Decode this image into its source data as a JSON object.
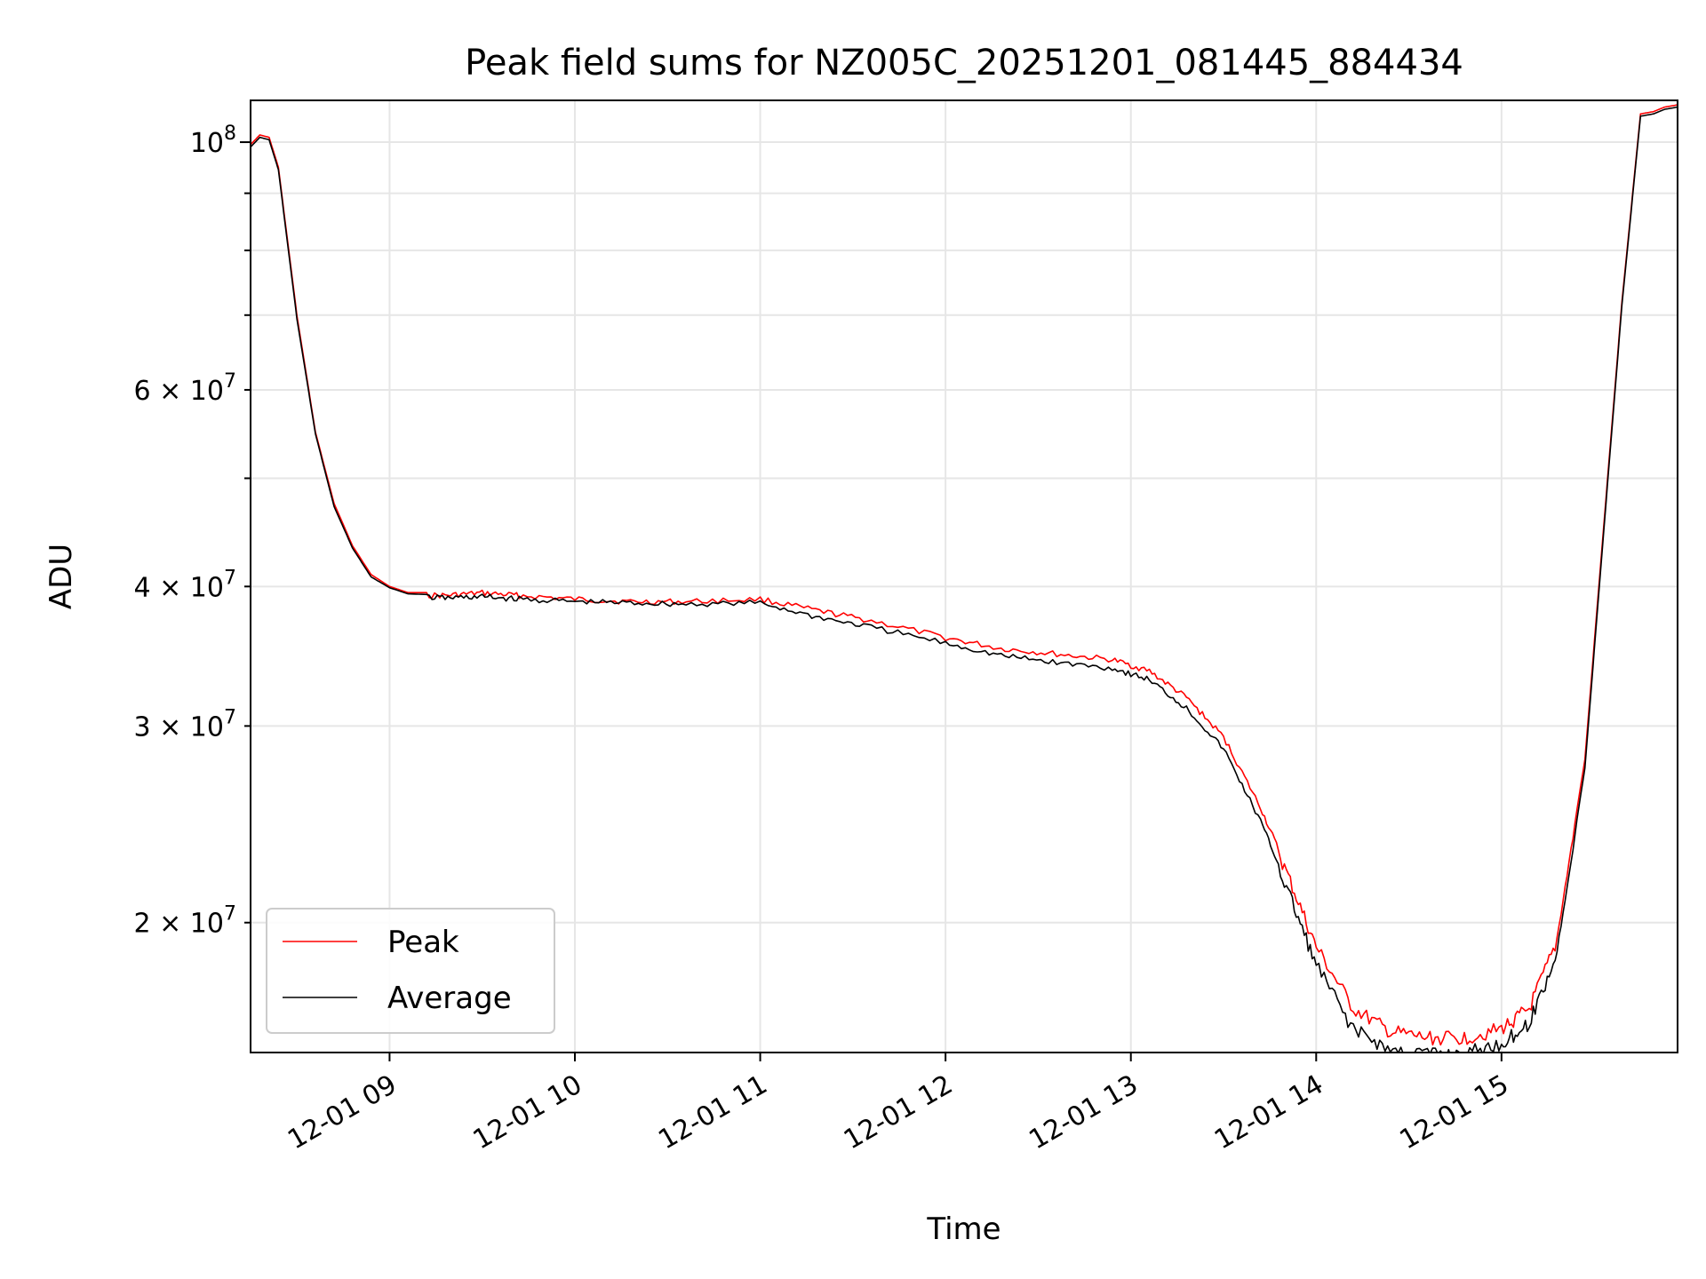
{
  "chart_data": {
    "type": "line",
    "title": "Peak field sums for NZ005C_20251201_081445_884434",
    "xlabel": "Time",
    "ylabel": "ADU",
    "yscale": "log",
    "xlim": [
      8.25,
      15.95
    ],
    "ylim": [
      15300000,
      109000000
    ],
    "grid": true,
    "legend_position": "lower-left",
    "x_ticks": [
      {
        "value": 9,
        "label": "12-01 09"
      },
      {
        "value": 10,
        "label": "12-01 10"
      },
      {
        "value": 11,
        "label": "12-01 11"
      },
      {
        "value": 12,
        "label": "12-01 12"
      },
      {
        "value": 13,
        "label": "12-01 13"
      },
      {
        "value": 14,
        "label": "12-01 14"
      },
      {
        "value": 15,
        "label": "12-01 15"
      }
    ],
    "y_major_ticks": [
      {
        "value": 100000000,
        "mantissa": "10",
        "exponent": "8"
      }
    ],
    "y_minor_ticks": [
      {
        "value": 20000000,
        "mantissa": "2 × 10",
        "exponent": "7"
      },
      {
        "value": 30000000,
        "mantissa": "3 × 10",
        "exponent": "7"
      },
      {
        "value": 40000000,
        "mantissa": "4 × 10",
        "exponent": "7"
      },
      {
        "value": 60000000,
        "mantissa": "6 × 10",
        "exponent": "7"
      }
    ],
    "y_minor_unlabeled": [
      50000000,
      70000000,
      80000000,
      90000000
    ],
    "x": [
      8.25,
      8.3,
      8.35,
      8.4,
      8.5,
      8.6,
      8.7,
      8.8,
      8.9,
      9.0,
      9.1,
      9.3,
      9.5,
      9.7,
      10.0,
      10.3,
      10.6,
      11.0,
      11.3,
      11.6,
      12.0,
      12.3,
      12.6,
      12.9,
      13.1,
      13.3,
      13.5,
      13.7,
      13.85,
      14.0,
      14.2,
      14.4,
      14.6,
      14.8,
      15.0,
      15.15,
      15.3,
      15.45,
      15.55,
      15.65,
      15.75,
      15.82,
      15.88,
      15.95
    ],
    "series": [
      {
        "name": "Peak",
        "color": "#ff0000",
        "values": [
          99500000,
          101500000,
          101000000,
          95000000,
          70000000,
          55000000,
          47500000,
          43500000,
          41000000,
          40000000,
          39500000,
          39500000,
          39700000,
          39500000,
          39200000,
          39000000,
          39000000,
          39200000,
          38300000,
          37500000,
          36200000,
          35400000,
          35000000,
          34600000,
          33800000,
          32000000,
          29500000,
          25500000,
          22300000,
          19300000,
          17000000,
          16200000,
          16000000,
          16000000,
          16300000,
          17000000,
          19500000,
          28000000,
          45000000,
          72000000,
          106000000,
          106500000,
          107500000,
          108000000
        ]
      },
      {
        "name": "Average",
        "color": "#000000",
        "values": [
          99000000,
          101000000,
          100500000,
          94500000,
          69500000,
          54800000,
          47200000,
          43300000,
          40800000,
          39900000,
          39400000,
          39300000,
          39400000,
          39200000,
          39000000,
          38900000,
          38800000,
          38900000,
          37800000,
          37000000,
          35800000,
          34900000,
          34400000,
          34000000,
          33200000,
          31300000,
          28800000,
          24800000,
          21600000,
          18600000,
          16300000,
          15600000,
          15500000,
          15500000,
          15800000,
          16500000,
          19000000,
          27500000,
          44500000,
          71500000,
          105500000,
          106000000,
          107000000,
          107500000
        ]
      }
    ]
  },
  "legend": {
    "items": [
      {
        "label": "Peak",
        "color": "#ff0000"
      },
      {
        "label": "Average",
        "color": "#000000"
      }
    ]
  }
}
